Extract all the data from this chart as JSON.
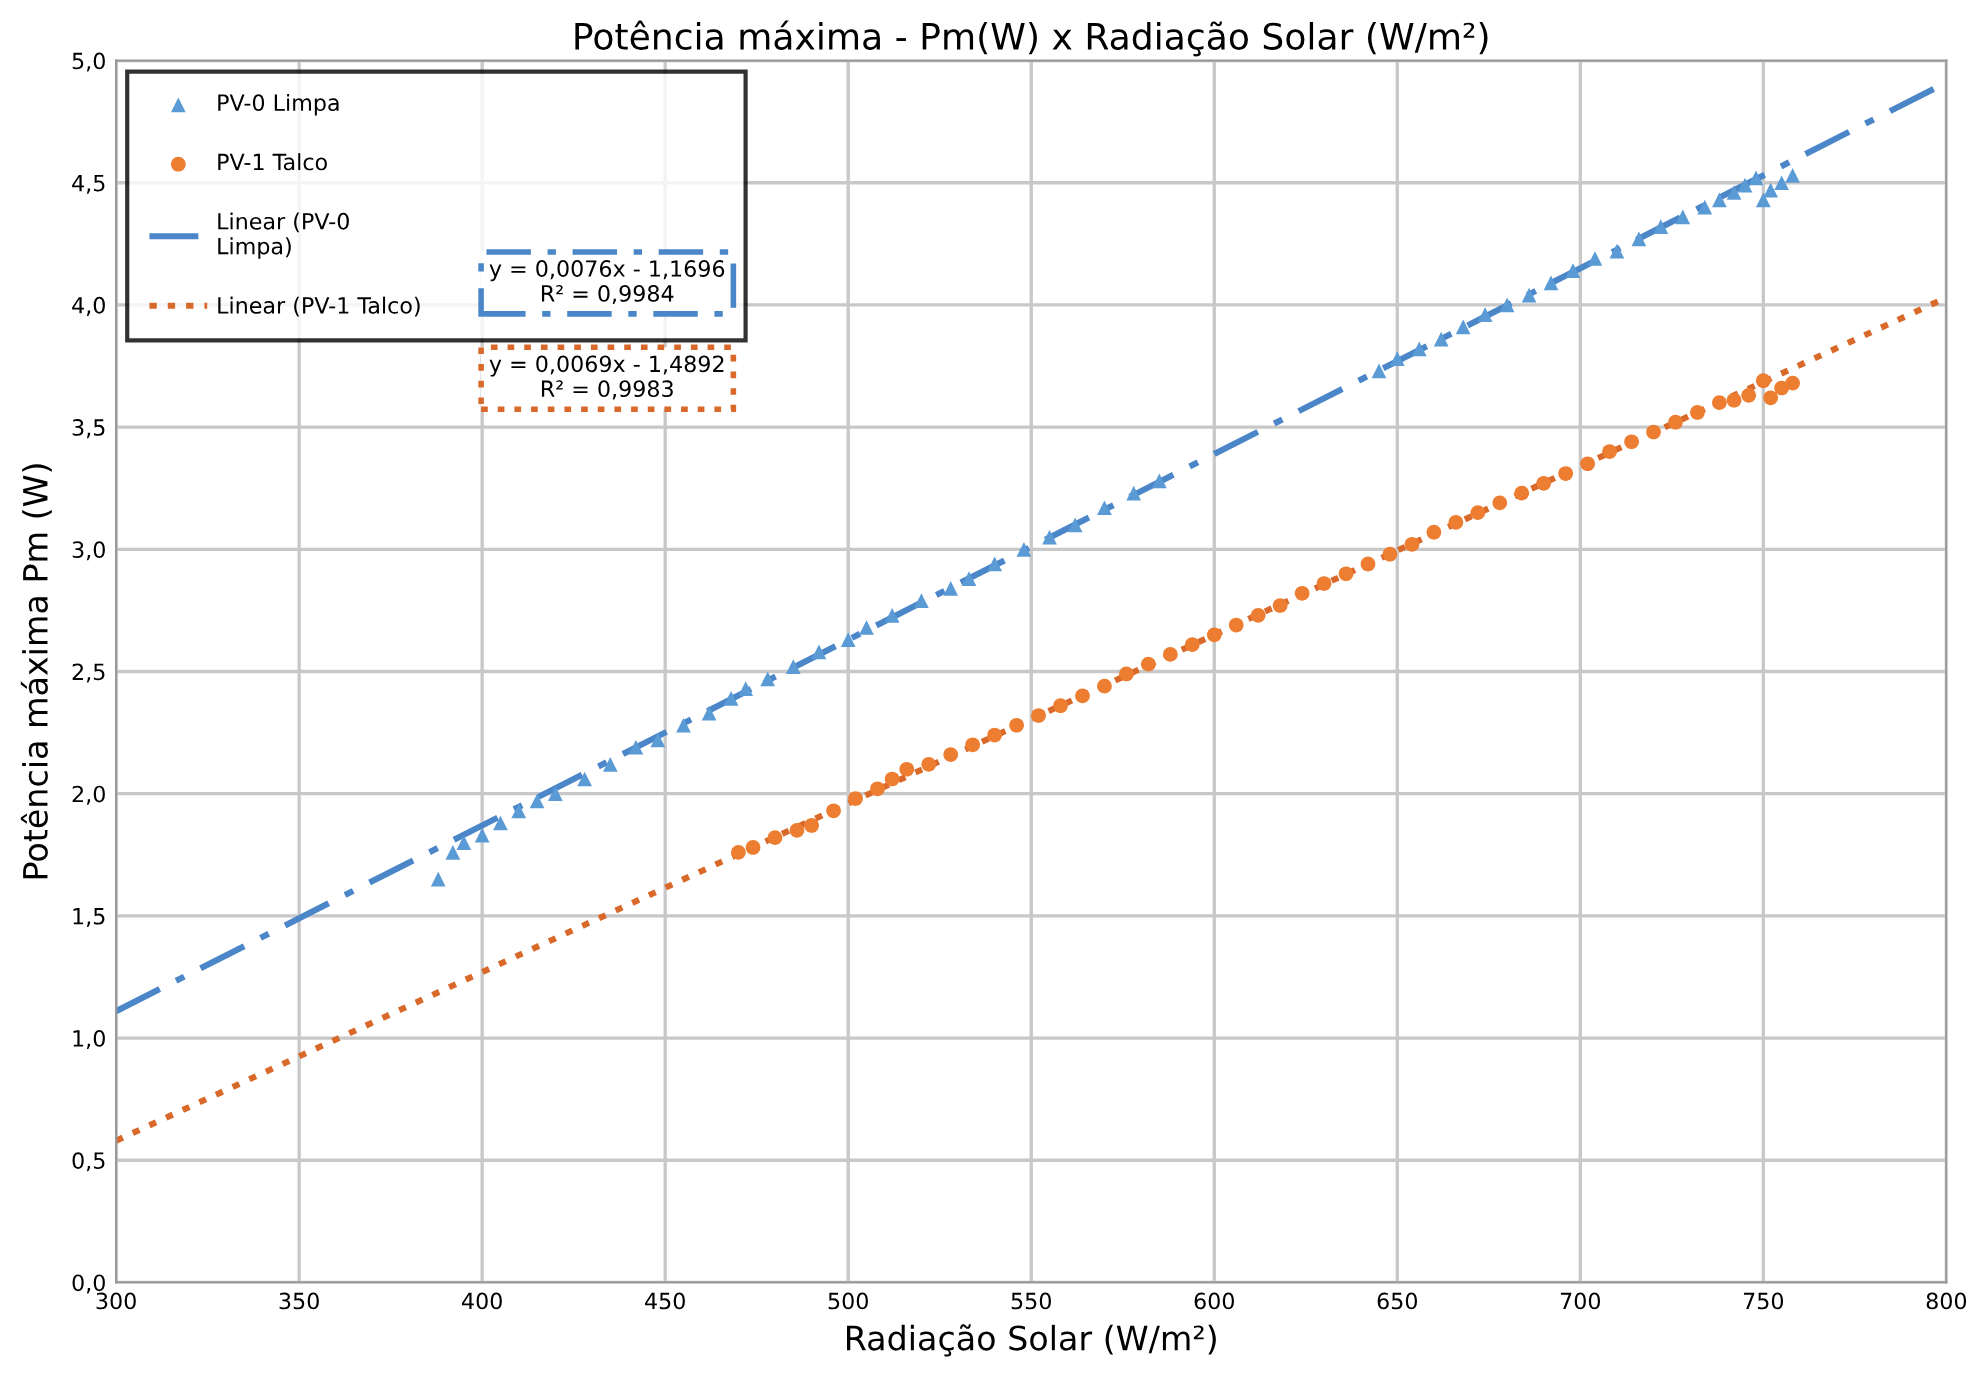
{
  "chart_data": {
    "type": "scatter",
    "title": "Potência máxima - Pm(W) x Radiação Solar (W/m²)",
    "xlabel": "Radiação Solar (W/m²)",
    "ylabel": "Potência máxima Pm (W)",
    "xlim": [
      300,
      800
    ],
    "xticks": [
      300,
      350,
      400,
      450,
      500,
      550,
      600,
      650,
      700,
      750,
      800
    ],
    "ylim": [
      0,
      5
    ],
    "yticks": [
      {
        "value": 0,
        "label": "0,0"
      },
      {
        "value": 0.5,
        "label": "0,5"
      },
      {
        "value": 1,
        "label": "1,0"
      },
      {
        "value": 1.5,
        "label": "1,5"
      },
      {
        "value": 2,
        "label": "2,0"
      },
      {
        "value": 2.5,
        "label": "2,5"
      },
      {
        "value": 3,
        "label": "3,0"
      },
      {
        "value": 3.5,
        "label": "3,5"
      },
      {
        "value": 4,
        "label": "4,0"
      },
      {
        "value": 4.5,
        "label": "4,5"
      },
      {
        "value": 5,
        "label": "5,0"
      }
    ],
    "grid": true,
    "legend": "top left",
    "series": [
      {
        "name": "PV-0 Limpa",
        "marker": "triangle",
        "color": "#5b9bd5",
        "x": [
          388,
          392,
          395,
          400,
          405,
          410,
          415,
          420,
          428,
          435,
          442,
          448,
          455,
          462,
          468,
          472,
          478,
          485,
          492,
          500,
          505,
          512,
          520,
          528,
          533,
          540,
          548,
          555,
          562,
          570,
          578,
          585,
          645,
          650,
          656,
          662,
          668,
          674,
          680,
          686,
          692,
          698,
          704,
          710,
          716,
          722,
          728,
          734,
          738,
          742,
          745,
          748,
          750,
          752,
          755,
          758
        ],
        "values": [
          1.65,
          1.76,
          1.8,
          1.83,
          1.88,
          1.93,
          1.97,
          2.0,
          2.06,
          2.12,
          2.19,
          2.22,
          2.28,
          2.33,
          2.39,
          2.43,
          2.47,
          2.52,
          2.58,
          2.63,
          2.68,
          2.73,
          2.79,
          2.84,
          2.88,
          2.94,
          3.0,
          3.05,
          3.1,
          3.17,
          3.23,
          3.28,
          3.73,
          3.78,
          3.82,
          3.86,
          3.91,
          3.96,
          4.0,
          4.04,
          4.09,
          4.14,
          4.19,
          4.22,
          4.27,
          4.32,
          4.36,
          4.4,
          4.43,
          4.46,
          4.49,
          4.52,
          4.43,
          4.47,
          4.5,
          4.53
        ]
      },
      {
        "name": "PV-1 Talco",
        "marker": "circle",
        "color": "#ed7d31",
        "x": [
          470,
          474,
          480,
          486,
          490,
          496,
          502,
          508,
          512,
          516,
          522,
          528,
          534,
          540,
          546,
          552,
          558,
          564,
          570,
          576,
          582,
          588,
          594,
          600,
          606,
          612,
          618,
          624,
          630,
          636,
          642,
          648,
          654,
          660,
          666,
          672,
          678,
          684,
          690,
          696,
          702,
          708,
          714,
          720,
          726,
          732,
          738,
          742,
          746,
          750,
          752,
          755,
          758
        ],
        "values": [
          1.76,
          1.78,
          1.82,
          1.85,
          1.87,
          1.93,
          1.98,
          2.02,
          2.06,
          2.1,
          2.12,
          2.16,
          2.2,
          2.24,
          2.28,
          2.32,
          2.36,
          2.4,
          2.44,
          2.49,
          2.53,
          2.57,
          2.61,
          2.65,
          2.69,
          2.73,
          2.77,
          2.82,
          2.86,
          2.9,
          2.94,
          2.98,
          3.02,
          3.07,
          3.11,
          3.15,
          3.19,
          3.23,
          3.27,
          3.31,
          3.35,
          3.4,
          3.44,
          3.48,
          3.52,
          3.56,
          3.6,
          3.61,
          3.63,
          3.69,
          3.62,
          3.66,
          3.68
        ]
      },
      {
        "name": "Linear (PV-0\nLimpa)",
        "type": "line",
        "line_style": "dashdot",
        "color": "#4a86c8",
        "x": [
          300,
          800
        ],
        "values": [
          1.11,
          4.91
        ]
      },
      {
        "name": "Linear (PV-1 Talco)",
        "type": "line",
        "line_style": "dotted",
        "color": "#d9692a",
        "x": [
          300,
          800
        ],
        "values": [
          0.58,
          4.03
        ]
      }
    ],
    "annotations": [
      "y = 0,0076x - 1,1696\nR² = 0,9984",
      "y = 0,0069x - 1,4892\nR² = 0,9983"
    ]
  }
}
